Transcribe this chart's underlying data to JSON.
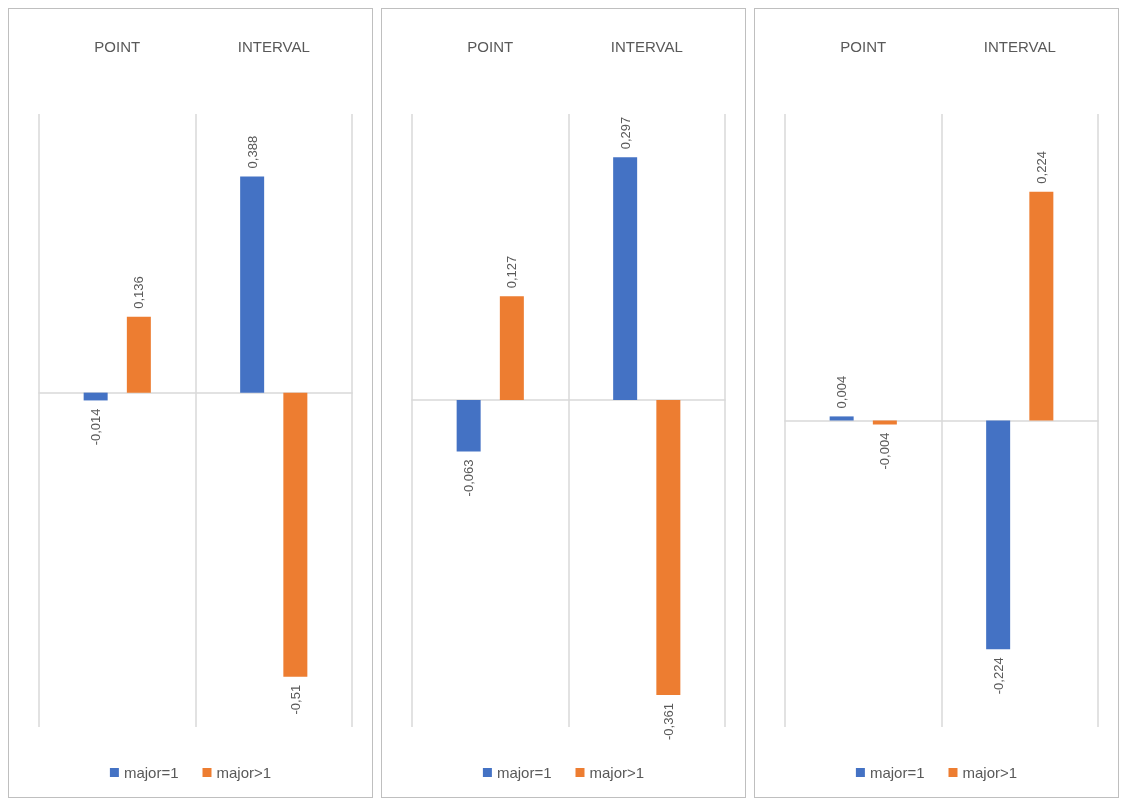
{
  "chart_data": [
    {
      "type": "bar",
      "categories": [
        "POINT",
        "INTERVAL"
      ],
      "ylim": [
        -0.6,
        0.5
      ],
      "grid": "x",
      "legend": "bottom",
      "series": [
        {
          "name": "major=1",
          "color": "#4472c4",
          "values": [
            -0.014,
            0.388
          ],
          "value_labels": [
            "-0,014",
            "0,388"
          ]
        },
        {
          "name": "major>1",
          "color": "#ed7d31",
          "values": [
            0.136,
            -0.51
          ],
          "value_labels": [
            "0,136",
            "-0,51"
          ]
        }
      ]
    },
    {
      "type": "bar",
      "categories": [
        "POINT",
        "INTERVAL"
      ],
      "ylim": [
        -0.4,
        0.35
      ],
      "grid": "x",
      "legend": "bottom",
      "series": [
        {
          "name": "major=1",
          "color": "#4472c4",
          "values": [
            -0.063,
            0.297
          ],
          "value_labels": [
            "-0,063",
            "0,297"
          ]
        },
        {
          "name": "major>1",
          "color": "#ed7d31",
          "values": [
            0.127,
            -0.361
          ],
          "value_labels": [
            "0,127",
            "-0,361"
          ]
        }
      ]
    },
    {
      "type": "bar",
      "categories": [
        "POINT",
        "INTERVAL"
      ],
      "ylim": [
        -0.3,
        0.3
      ],
      "grid": "x",
      "legend": "bottom",
      "series": [
        {
          "name": "major=1",
          "color": "#4472c4",
          "values": [
            0.004,
            -0.224
          ],
          "value_labels": [
            "0,004",
            "-0,224"
          ]
        },
        {
          "name": "major>1",
          "color": "#ed7d31",
          "values": [
            -0.004,
            0.224
          ],
          "value_labels": [
            "-0,004",
            "0,224"
          ]
        }
      ]
    }
  ]
}
